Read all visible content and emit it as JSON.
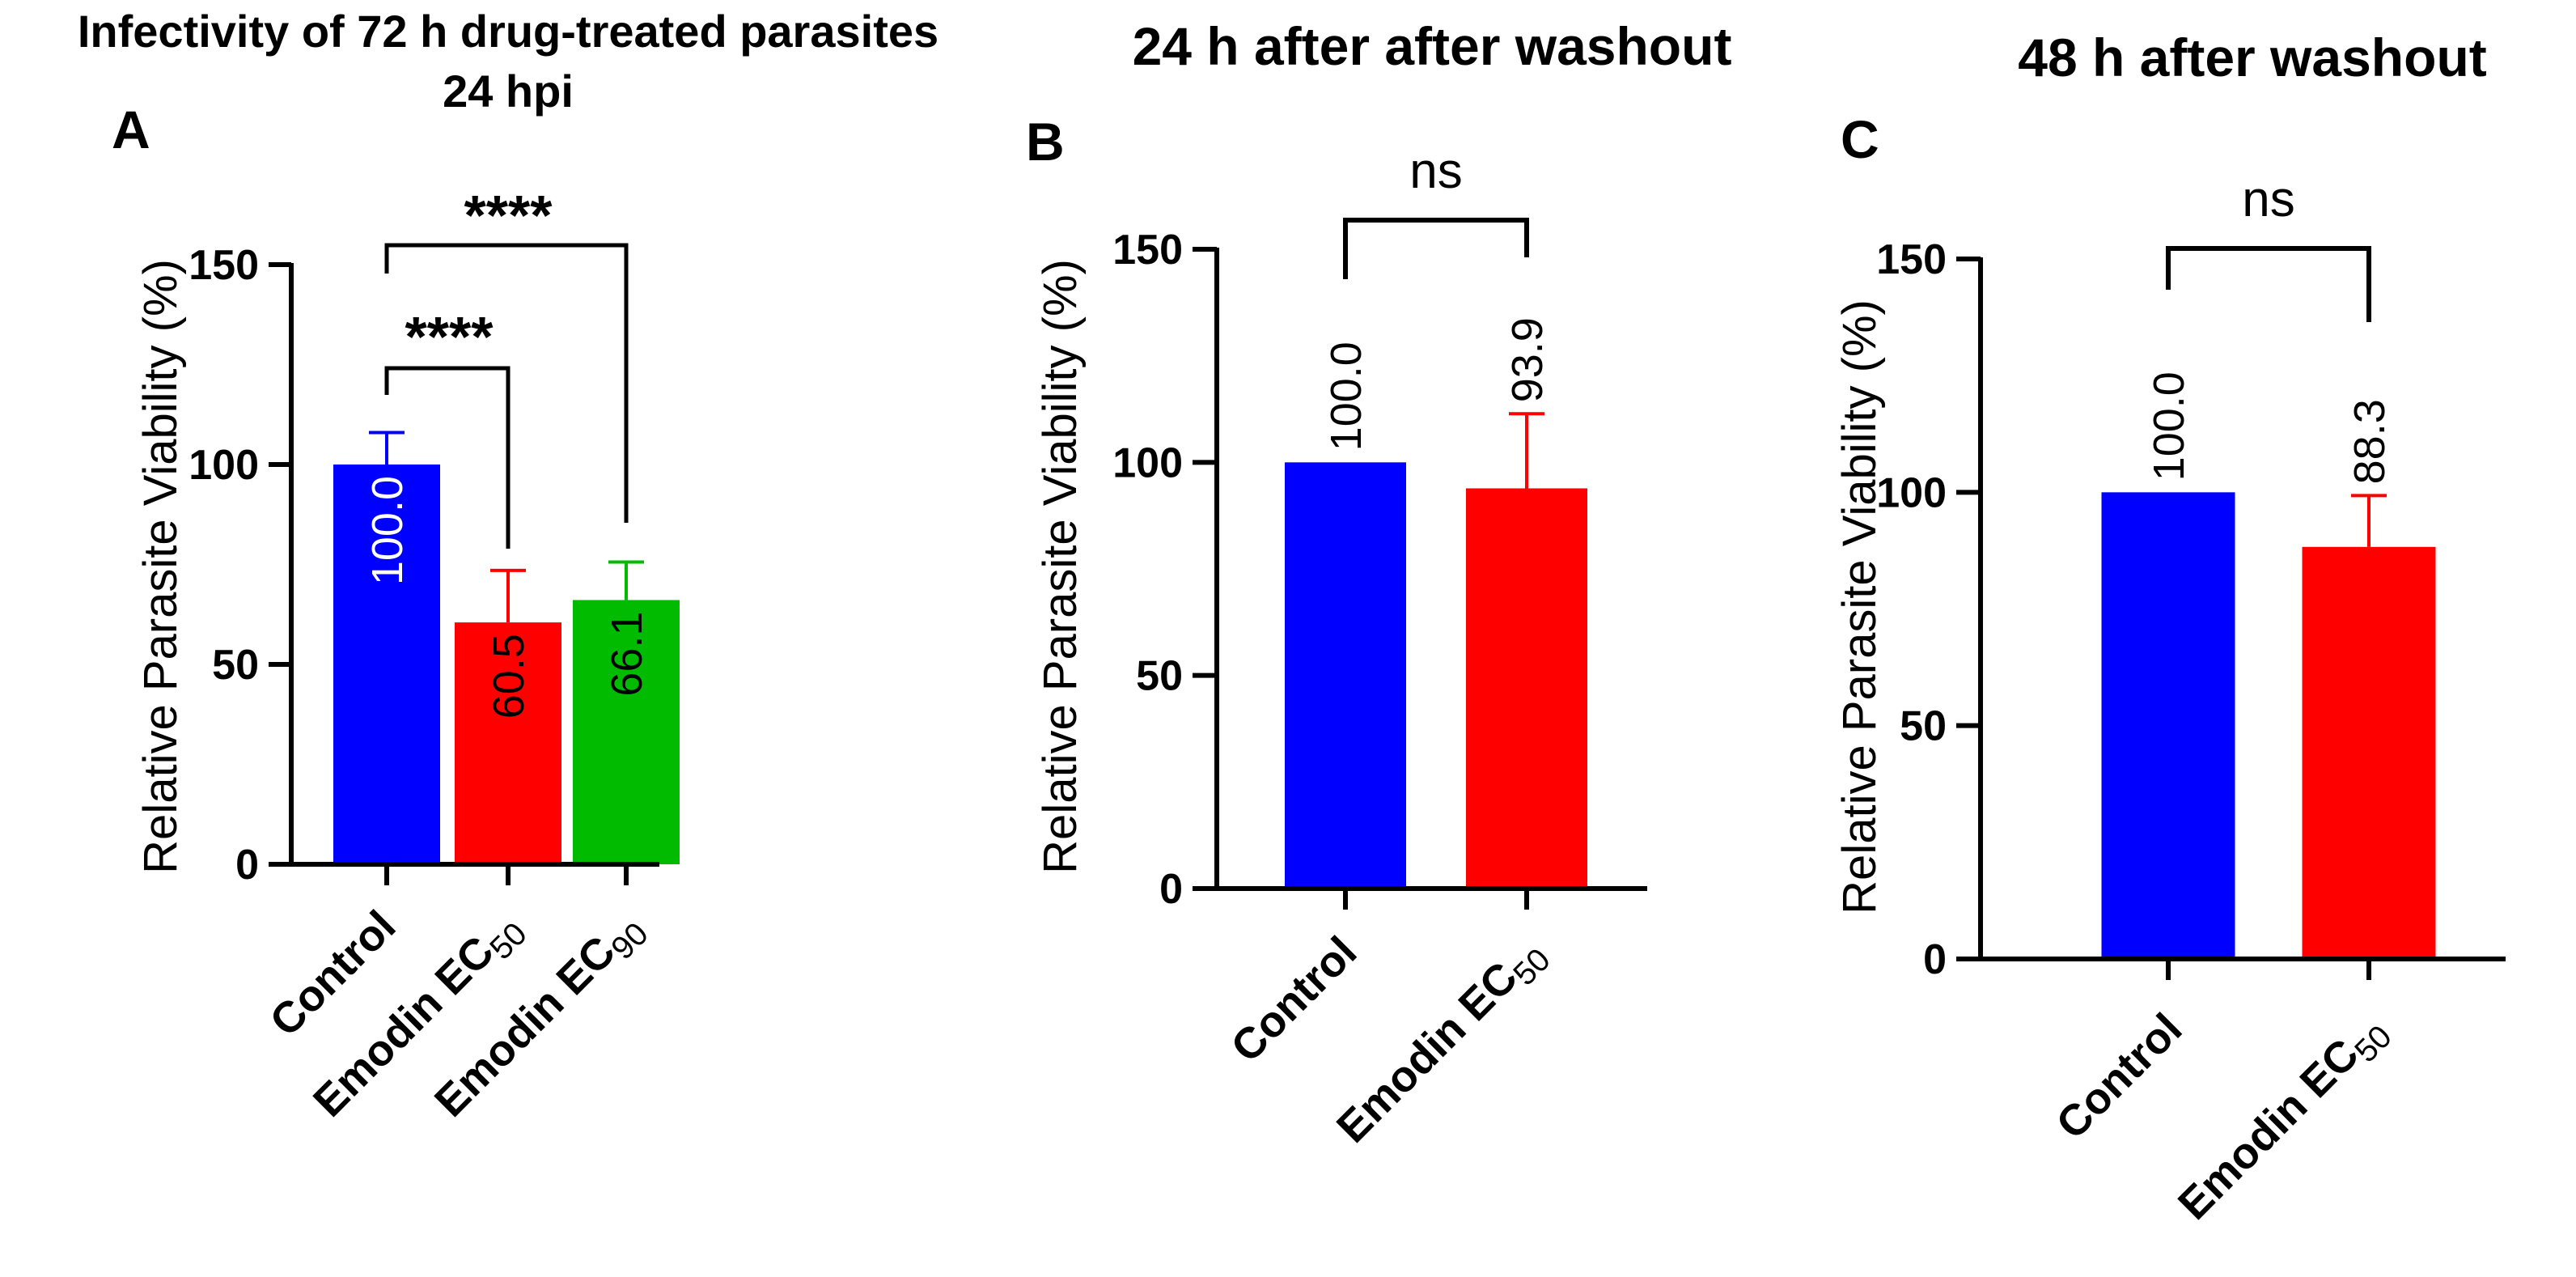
{
  "chart_data": [
    {
      "panel": "A",
      "type": "bar",
      "title_lines": [
        "Infectivity of 72 h drug-treated parasites",
        "24 hpi"
      ],
      "ylabel": "Relative Parasite Viability (%)",
      "ylim": [
        0,
        150
      ],
      "yticks": [
        0,
        50,
        100,
        150
      ],
      "categories": [
        {
          "main": "Control",
          "sub": ""
        },
        {
          "main": "Emodin EC",
          "sub": "50"
        },
        {
          "main": "Emodin EC",
          "sub": "90"
        }
      ],
      "values": [
        100.0,
        60.5,
        66.1
      ],
      "value_labels": [
        "100.0",
        "60.5",
        "66.1"
      ],
      "errors": [
        8.0,
        13.0,
        9.5
      ],
      "colors": [
        "#0000ff",
        "#ff0000",
        "#00bb00"
      ],
      "value_label_colors": [
        "#ffffff",
        "#000000",
        "#000000"
      ],
      "value_label_position": "inside",
      "significance": [
        {
          "from": 0,
          "to": 1,
          "label": "****"
        },
        {
          "from": 0,
          "to": 2,
          "label": "****"
        }
      ]
    },
    {
      "panel": "B",
      "type": "bar",
      "title_lines": [
        "24 h after after washout"
      ],
      "ylabel": "Relative Parasite Viability (%)",
      "ylim": [
        0,
        150
      ],
      "yticks": [
        0,
        50,
        100,
        150
      ],
      "categories": [
        {
          "main": "Control",
          "sub": ""
        },
        {
          "main": "Emodin EC",
          "sub": "50"
        }
      ],
      "values": [
        100.0,
        93.9
      ],
      "value_labels": [
        "100.0",
        "93.9"
      ],
      "errors": [
        0,
        17.5
      ],
      "colors": [
        "#0000ff",
        "#ff0000"
      ],
      "value_label_colors": [
        "#000000",
        "#000000"
      ],
      "value_label_position": "above",
      "significance": [
        {
          "from": 0,
          "to": 1,
          "label": "ns"
        }
      ]
    },
    {
      "panel": "C",
      "type": "bar",
      "title_lines": [
        "48 h after washout"
      ],
      "ylabel": "Relative Parasite Viability (%)",
      "ylim": [
        0,
        150
      ],
      "yticks": [
        0,
        50,
        100,
        150
      ],
      "categories": [
        {
          "main": "Control",
          "sub": ""
        },
        {
          "main": "Emodin EC",
          "sub": "50"
        }
      ],
      "values": [
        100.0,
        88.3
      ],
      "value_labels": [
        "100.0",
        "88.3"
      ],
      "errors": [
        0,
        11.0
      ],
      "colors": [
        "#0000ff",
        "#ff0000"
      ],
      "value_label_colors": [
        "#000000",
        "#000000"
      ],
      "value_label_position": "above",
      "significance": [
        {
          "from": 0,
          "to": 1,
          "label": "ns"
        }
      ]
    }
  ]
}
